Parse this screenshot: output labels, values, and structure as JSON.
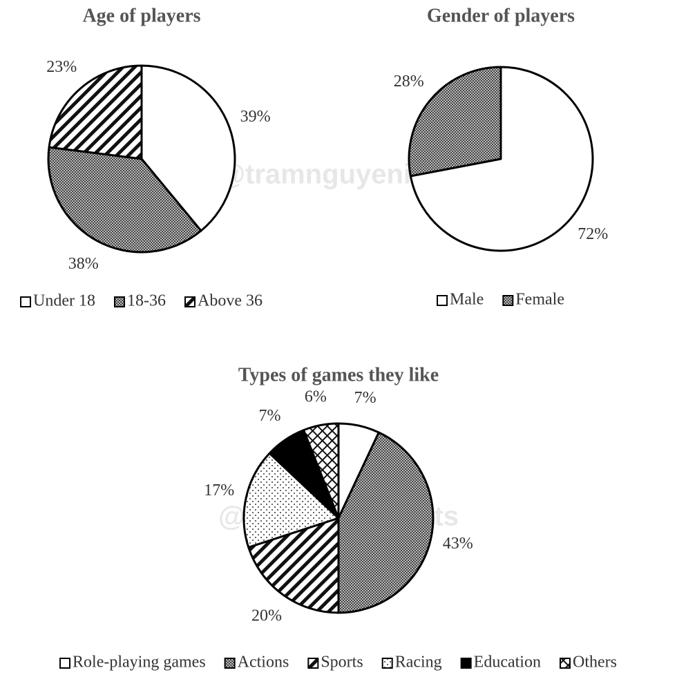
{
  "watermark": "@tramnguyenielts",
  "chart_data": [
    {
      "type": "pie",
      "title": "Age of players",
      "categories": [
        "Under 18",
        "18-36",
        "Above 36"
      ],
      "values": [
        39,
        38,
        23
      ],
      "value_labels": [
        "39%",
        "38%",
        "23%"
      ],
      "fills": [
        "white",
        "dense-dots",
        "diagonal-stripes"
      ]
    },
    {
      "type": "pie",
      "title": "Gender of players",
      "categories": [
        "Male",
        "Female"
      ],
      "values": [
        72,
        28
      ],
      "value_labels": [
        "72%",
        "28%"
      ],
      "fills": [
        "white",
        "dense-dots"
      ]
    },
    {
      "type": "pie",
      "title": "Types of games they like",
      "categories": [
        "Role-playing games",
        "Actions",
        "Sports",
        "Racing",
        "Education",
        "Others"
      ],
      "values": [
        7,
        43,
        20,
        17,
        7,
        6
      ],
      "value_labels": [
        "7%",
        "43%",
        "20%",
        "17%",
        "7%",
        "6%"
      ],
      "fills": [
        "white",
        "dense-dots",
        "diagonal-stripes",
        "dots",
        "black",
        "crosshatch"
      ]
    }
  ]
}
